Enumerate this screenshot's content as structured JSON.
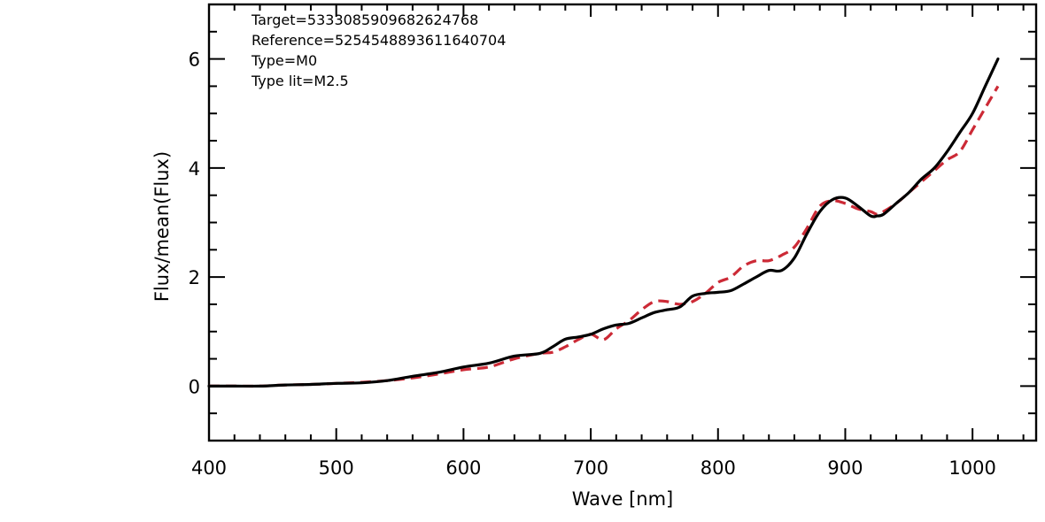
{
  "chart_data": {
    "type": "line",
    "xlabel": "Wave [nm]",
    "ylabel": "Flux/mean(Flux)",
    "xlim": [
      400,
      1050
    ],
    "ylim": [
      -1,
      7
    ],
    "xticks": [
      400,
      500,
      600,
      700,
      800,
      900,
      1000
    ],
    "yticks": [
      0,
      2,
      4,
      6
    ],
    "grid": false,
    "annotations": [
      "Target=5333085909682624768",
      "Reference=5254548893611640704",
      "Type=M0",
      "Type lit=M2.5"
    ],
    "series": [
      {
        "color": "#000000",
        "style": "solid",
        "x": [
          400,
          420,
          440,
          460,
          480,
          500,
          520,
          540,
          560,
          580,
          600,
          620,
          640,
          660,
          670,
          680,
          690,
          700,
          710,
          720,
          730,
          740,
          750,
          760,
          770,
          780,
          790,
          800,
          810,
          820,
          830,
          840,
          850,
          860,
          870,
          880,
          890,
          900,
          910,
          920,
          925,
          930,
          940,
          950,
          960,
          970,
          980,
          990,
          1000,
          1010,
          1020
        ],
        "y": [
          0.0,
          0.0,
          0.0,
          0.02,
          0.03,
          0.05,
          0.06,
          0.1,
          0.18,
          0.25,
          0.35,
          0.42,
          0.55,
          0.6,
          0.72,
          0.86,
          0.9,
          0.95,
          1.05,
          1.12,
          1.15,
          1.25,
          1.35,
          1.4,
          1.45,
          1.65,
          1.7,
          1.72,
          1.75,
          1.87,
          2.0,
          2.12,
          2.12,
          2.35,
          2.8,
          3.2,
          3.42,
          3.45,
          3.3,
          3.12,
          3.12,
          3.15,
          3.35,
          3.55,
          3.8,
          4.0,
          4.3,
          4.65,
          5.0,
          5.5,
          6.0
        ]
      },
      {
        "color": "#cc2a36",
        "style": "dashed",
        "x": [
          400,
          420,
          440,
          460,
          480,
          500,
          520,
          540,
          560,
          580,
          600,
          620,
          640,
          660,
          670,
          680,
          690,
          700,
          710,
          720,
          730,
          740,
          750,
          760,
          770,
          780,
          790,
          800,
          810,
          820,
          830,
          840,
          850,
          860,
          870,
          880,
          890,
          900,
          910,
          920,
          925,
          930,
          940,
          950,
          960,
          970,
          980,
          990,
          1000,
          1010,
          1020
        ],
        "y": [
          0.0,
          0.0,
          0.0,
          0.02,
          0.03,
          0.05,
          0.07,
          0.1,
          0.15,
          0.22,
          0.3,
          0.35,
          0.5,
          0.6,
          0.62,
          0.72,
          0.85,
          0.95,
          0.85,
          1.05,
          1.2,
          1.4,
          1.55,
          1.55,
          1.5,
          1.55,
          1.7,
          1.9,
          2.0,
          2.2,
          2.3,
          2.3,
          2.4,
          2.55,
          2.9,
          3.3,
          3.4,
          3.35,
          3.25,
          3.2,
          3.15,
          3.2,
          3.35,
          3.55,
          3.75,
          3.95,
          4.15,
          4.3,
          4.7,
          5.1,
          5.5
        ]
      }
    ]
  }
}
